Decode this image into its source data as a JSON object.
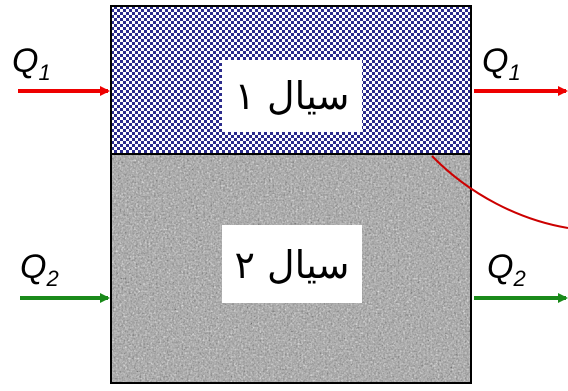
{
  "fluid_1": {
    "label": "سیال ۱"
  },
  "fluid_2": {
    "label": "سیال ۲"
  },
  "flows": {
    "q1": {
      "symbol": "Q",
      "subscript": "1"
    },
    "q2": {
      "symbol": "Q",
      "subscript": "2"
    }
  },
  "colors": {
    "q1_arrow": "#ee0000",
    "q2_arrow": "#1a8a1a",
    "interface_line": "#cc0000",
    "fluid_1_pattern_dots": "#2b2b8c",
    "fluid_2_texture": "#8a8a8a"
  }
}
